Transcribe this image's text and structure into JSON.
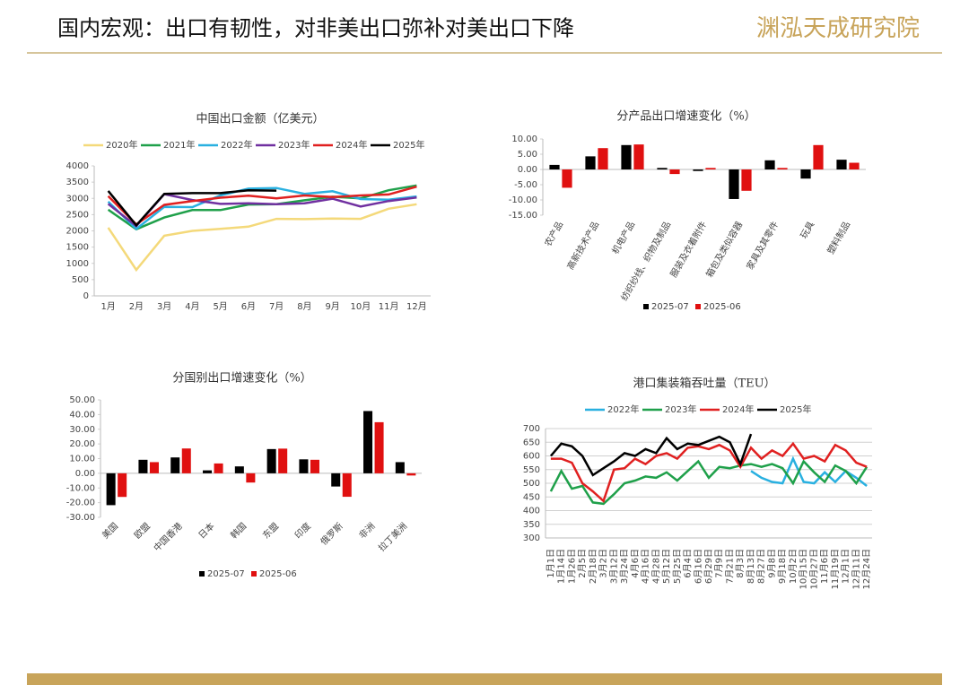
{
  "header": {
    "title": "国内宏观：出口有韧性，对非美出口弥补对美出口下降",
    "logo": "渊泓天成研究院"
  },
  "chart_data": [
    {
      "type": "line",
      "title": "中国出口金额（亿美元）",
      "categories": [
        "1月",
        "2月",
        "3月",
        "4月",
        "5月",
        "6月",
        "7月",
        "8月",
        "9月",
        "10月",
        "11月",
        "12月"
      ],
      "series": [
        {
          "name": "2020年",
          "color": "#f4d97a",
          "values": [
            2100,
            800,
            1850,
            2000,
            2060,
            2130,
            2370,
            2360,
            2380,
            2370,
            2680,
            2820
          ]
        },
        {
          "name": "2021年",
          "color": "#1fa04a",
          "values": [
            2650,
            2050,
            2410,
            2640,
            2640,
            2810,
            2820,
            2940,
            3050,
            3000,
            3250,
            3400
          ]
        },
        {
          "name": "2022年",
          "color": "#29b0e0",
          "values": [
            2900,
            2060,
            2740,
            2730,
            3090,
            3300,
            3320,
            3140,
            3220,
            2980,
            2960,
            3060
          ]
        },
        {
          "name": "2023年",
          "color": "#7030a0",
          "values": [
            2830,
            2150,
            3130,
            2950,
            2830,
            2850,
            2820,
            2850,
            2990,
            2750,
            2920,
            3030
          ]
        },
        {
          "name": "2024年",
          "color": "#e02020",
          "values": [
            3070,
            2200,
            2800,
            2920,
            3020,
            3080,
            3000,
            3090,
            3040,
            3090,
            3120,
            3360
          ]
        },
        {
          "name": "2025年",
          "color": "#000000",
          "values": [
            3230,
            2170,
            3140,
            3160,
            3160,
            3250,
            3240,
            null,
            null,
            null,
            null,
            null
          ]
        }
      ],
      "ylim": [
        0,
        4000
      ],
      "yticks": [
        0,
        500,
        1000,
        1500,
        2000,
        2500,
        3000,
        3500,
        4000
      ],
      "grid": false,
      "legend": "top"
    },
    {
      "type": "bar",
      "title": "分产品出口增速变化（%）",
      "categories": [
        "农产品",
        "高新技术产品",
        "机电产品",
        "纺织纱线、织物及制品",
        "服装及衣着附件",
        "箱包及类似容器",
        "家具及其零件",
        "玩具",
        "塑料制品"
      ],
      "series": [
        {
          "name": "2025-07",
          "color": "#000000",
          "values": [
            1.5,
            4.3,
            8.0,
            0.5,
            -0.5,
            -9.7,
            3.0,
            -3.0,
            3.2
          ]
        },
        {
          "name": "2025-06",
          "color": "#e01010",
          "values": [
            -6.0,
            7.0,
            8.2,
            -1.5,
            0.5,
            -7.0,
            0.5,
            8.0,
            2.2
          ]
        }
      ],
      "ylim": [
        -15,
        10
      ],
      "yticks": [
        {
          "value": -15,
          "label": "-15.00"
        },
        {
          "value": -10,
          "label": "-10.00"
        },
        {
          "value": -5,
          "label": "-5.00"
        },
        {
          "value": 0,
          "label": "0.00"
        },
        {
          "value": 5,
          "label": "5.00"
        },
        {
          "value": 10,
          "label": "10.00"
        }
      ],
      "grid": false,
      "legend": "bottom"
    },
    {
      "type": "bar",
      "title": "分国别出口增速变化（%）",
      "categories": [
        "美国",
        "欧盟",
        "中国香港",
        "日本",
        "韩国",
        "东盟",
        "印度",
        "俄罗斯",
        "非洲",
        "拉丁美洲"
      ],
      "series": [
        {
          "name": "2025-07",
          "color": "#000000",
          "values": [
            -21.7,
            9.2,
            10.8,
            2.0,
            4.7,
            16.5,
            9.5,
            -9.0,
            42.4,
            7.6
          ]
        },
        {
          "name": "2025-06",
          "color": "#e01010",
          "values": [
            -16.1,
            7.6,
            16.9,
            6.7,
            -6.3,
            16.8,
            9.2,
            -16.0,
            34.8,
            -1.5
          ]
        }
      ],
      "ylim": [
        -30,
        50
      ],
      "yticks": [
        {
          "value": -30,
          "label": "-30.00"
        },
        {
          "value": -20,
          "label": "-20.00"
        },
        {
          "value": -10,
          "label": "-10.00"
        },
        {
          "value": 0,
          "label": "0.00"
        },
        {
          "value": 10,
          "label": "10.00"
        },
        {
          "value": 20,
          "label": "20.00"
        },
        {
          "value": 30,
          "label": "30.00"
        },
        {
          "value": 40,
          "label": "40.00"
        },
        {
          "value": 50,
          "label": "50.00"
        }
      ],
      "grid": false,
      "legend": "bottom"
    },
    {
      "type": "line",
      "title": "港口集装箱吞吐量（TEU）",
      "categories": [
        "1月1日",
        "1月14日",
        "1月26日",
        "2月5日",
        "2月18日",
        "3月2日",
        "3月12日",
        "3月24日",
        "4月6日",
        "4月16日",
        "4月28日",
        "5月12日",
        "5月25日",
        "6月4日",
        "6月16日",
        "6月29日",
        "7月9日",
        "7月21日",
        "8月3日",
        "8月13日",
        "8月27日",
        "9月8日",
        "9月18日",
        "10月2日",
        "10月15日",
        "10月27日",
        "11月6日",
        "11月19日",
        "12月1日",
        "12月11日",
        "12月24日"
      ],
      "series": [
        {
          "name": "2022年",
          "color": "#29b0e0",
          "values": [
            null,
            null,
            null,
            null,
            null,
            null,
            null,
            null,
            null,
            null,
            null,
            null,
            null,
            null,
            null,
            null,
            null,
            null,
            null,
            545,
            520,
            505,
            500,
            590,
            505,
            500,
            540,
            505,
            545,
            520,
            490
          ]
        },
        {
          "name": "2023年",
          "color": "#1fa04a",
          "values": [
            470,
            545,
            480,
            490,
            430,
            425,
            460,
            500,
            510,
            525,
            520,
            540,
            510,
            545,
            580,
            520,
            560,
            555,
            565,
            570,
            560,
            570,
            555,
            500,
            580,
            540,
            505,
            565,
            545,
            500,
            560
          ]
        },
        {
          "name": "2024年",
          "color": "#e02020",
          "values": [
            590,
            590,
            575,
            500,
            470,
            435,
            550,
            555,
            590,
            570,
            600,
            610,
            590,
            630,
            635,
            625,
            640,
            620,
            560,
            630,
            590,
            620,
            600,
            645,
            590,
            600,
            580,
            640,
            620,
            575,
            560
          ]
        },
        {
          "name": "2025年",
          "color": "#000000",
          "values": [
            600,
            645,
            635,
            600,
            530,
            555,
            580,
            610,
            600,
            625,
            610,
            665,
            625,
            645,
            640,
            655,
            670,
            650,
            570,
            680,
            null,
            null,
            null,
            null,
            null,
            null,
            null,
            null,
            null,
            null,
            null
          ]
        }
      ],
      "ylim": [
        300,
        700
      ],
      "yticks": [
        300,
        350,
        400,
        450,
        500,
        550,
        600,
        650,
        700
      ],
      "grid": true,
      "legend": "top"
    }
  ]
}
